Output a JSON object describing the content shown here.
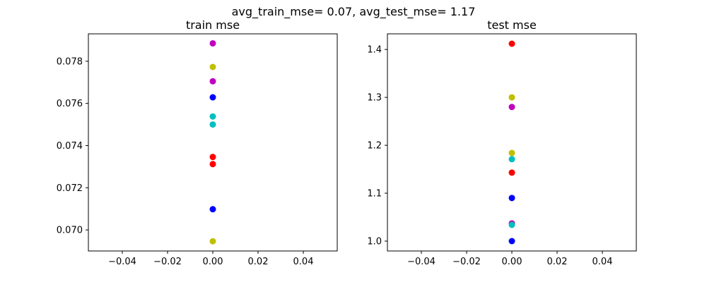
{
  "figure": {
    "suptitle": "avg_train_mse= 0.07, avg_test_mse= 1.17"
  },
  "colors": {
    "red": "#ff0000",
    "blue": "#0000ff",
    "cyan": "#00bfbf",
    "magenta": "#bf00bf",
    "yellow": "#bfbf00"
  },
  "chart_data": [
    {
      "type": "scatter",
      "title": "train mse",
      "xlabel": "",
      "ylabel": "",
      "xlim": [
        -0.055,
        0.055
      ],
      "ylim": [
        0.069,
        0.0793
      ],
      "xticks": [
        -0.04,
        -0.02,
        0.0,
        0.02,
        0.04
      ],
      "xtick_labels": [
        "−0.04",
        "−0.02",
        "0.00",
        "0.02",
        "0.04"
      ],
      "yticks": [
        0.07,
        0.072,
        0.074,
        0.076,
        0.078
      ],
      "ytick_labels": [
        "0.070",
        "0.072",
        "0.074",
        "0.076",
        "0.078"
      ],
      "grid": false,
      "points": [
        {
          "x": 0,
          "y": 0.07885,
          "color": "#bf00bf"
        },
        {
          "x": 0,
          "y": 0.07773,
          "color": "#bfbf00"
        },
        {
          "x": 0,
          "y": 0.07705,
          "color": "#bf00bf"
        },
        {
          "x": 0,
          "y": 0.07629,
          "color": "#0000ff"
        },
        {
          "x": 0,
          "y": 0.07538,
          "color": "#00bfbf"
        },
        {
          "x": 0,
          "y": 0.075,
          "color": "#00bfbf"
        },
        {
          "x": 0,
          "y": 0.07346,
          "color": "#ff0000"
        },
        {
          "x": 0,
          "y": 0.07312,
          "color": "#ff0000"
        },
        {
          "x": 0,
          "y": 0.07098,
          "color": "#0000ff"
        },
        {
          "x": 0,
          "y": 0.06946,
          "color": "#bfbf00"
        }
      ]
    },
    {
      "type": "scatter",
      "title": "test mse",
      "xlabel": "",
      "ylabel": "",
      "xlim": [
        -0.055,
        0.055
      ],
      "ylim": [
        0.9794,
        1.4326
      ],
      "xticks": [
        -0.04,
        -0.02,
        0.0,
        0.02,
        0.04
      ],
      "xtick_labels": [
        "−0.04",
        "−0.02",
        "0.00",
        "0.02",
        "0.04"
      ],
      "yticks": [
        1.0,
        1.1,
        1.2,
        1.3,
        1.4
      ],
      "ytick_labels": [
        "1.0",
        "1.1",
        "1.2",
        "1.3",
        "1.4"
      ],
      "grid": false,
      "points": [
        {
          "x": 0,
          "y": 1.412,
          "color": "#ff0000"
        },
        {
          "x": 0,
          "y": 1.3,
          "color": "#bfbf00"
        },
        {
          "x": 0,
          "y": 1.28,
          "color": "#bf00bf"
        },
        {
          "x": 0,
          "y": 1.184,
          "color": "#bfbf00"
        },
        {
          "x": 0,
          "y": 1.171,
          "color": "#00bfbf"
        },
        {
          "x": 0,
          "y": 1.143,
          "color": "#ff0000"
        },
        {
          "x": 0,
          "y": 1.09,
          "color": "#0000ff"
        },
        {
          "x": 0,
          "y": 1.037,
          "color": "#bf00bf"
        },
        {
          "x": 0,
          "y": 1.034,
          "color": "#00bfbf"
        },
        {
          "x": 0,
          "y": 1.0,
          "color": "#0000ff"
        }
      ]
    }
  ]
}
